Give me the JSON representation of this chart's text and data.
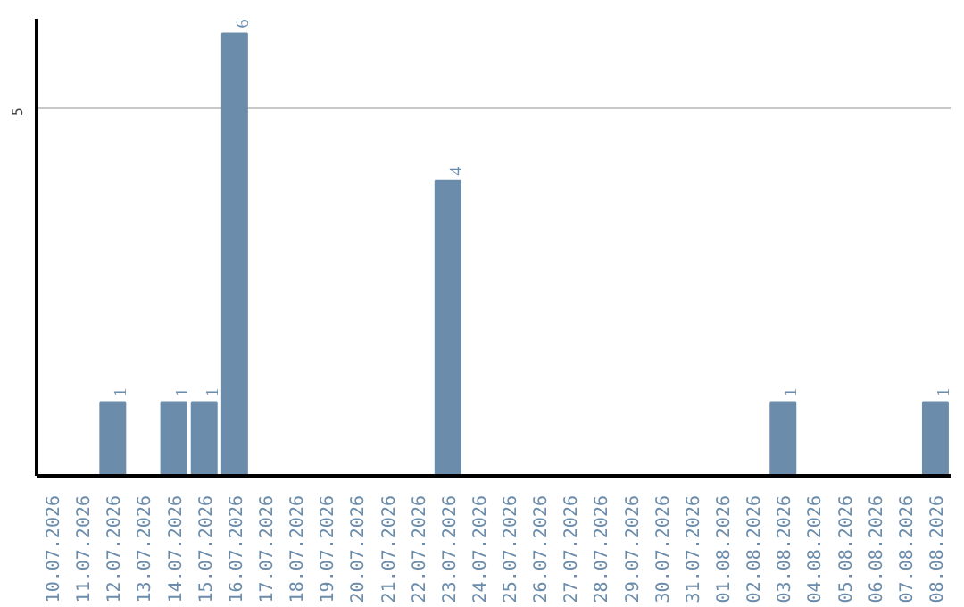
{
  "chart_data": {
    "type": "bar",
    "categories": [
      "10.07.2026",
      "11.07.2026",
      "12.07.2026",
      "13.07.2026",
      "14.07.2026",
      "15.07.2026",
      "16.07.2026",
      "17.07.2026",
      "18.07.2026",
      "19.07.2026",
      "20.07.2026",
      "21.07.2026",
      "22.07.2026",
      "23.07.2026",
      "24.07.2026",
      "25.07.2026",
      "26.07.2026",
      "27.07.2026",
      "28.07.2026",
      "29.07.2026",
      "30.07.2026",
      "31.07.2026",
      "01.08.2026",
      "02.08.2026",
      "03.08.2026",
      "04.08.2026",
      "05.08.2026",
      "06.08.2026",
      "07.08.2026",
      "08.08.2026"
    ],
    "values": [
      0,
      0,
      1,
      0,
      1,
      1,
      6,
      0,
      0,
      0,
      0,
      0,
      0,
      4,
      0,
      0,
      0,
      0,
      0,
      0,
      0,
      0,
      0,
      0,
      1,
      0,
      0,
      0,
      0,
      1
    ],
    "value_labels": [
      null,
      null,
      "1",
      null,
      "1",
      "1",
      "6",
      null,
      null,
      null,
      null,
      null,
      null,
      "4",
      null,
      null,
      null,
      null,
      null,
      null,
      null,
      null,
      null,
      null,
      "1",
      null,
      null,
      null,
      null,
      "1"
    ],
    "color": "#6b8cab",
    "ylim": [
      0,
      6.2
    ],
    "yticks": [
      5
    ],
    "grid": "y"
  }
}
